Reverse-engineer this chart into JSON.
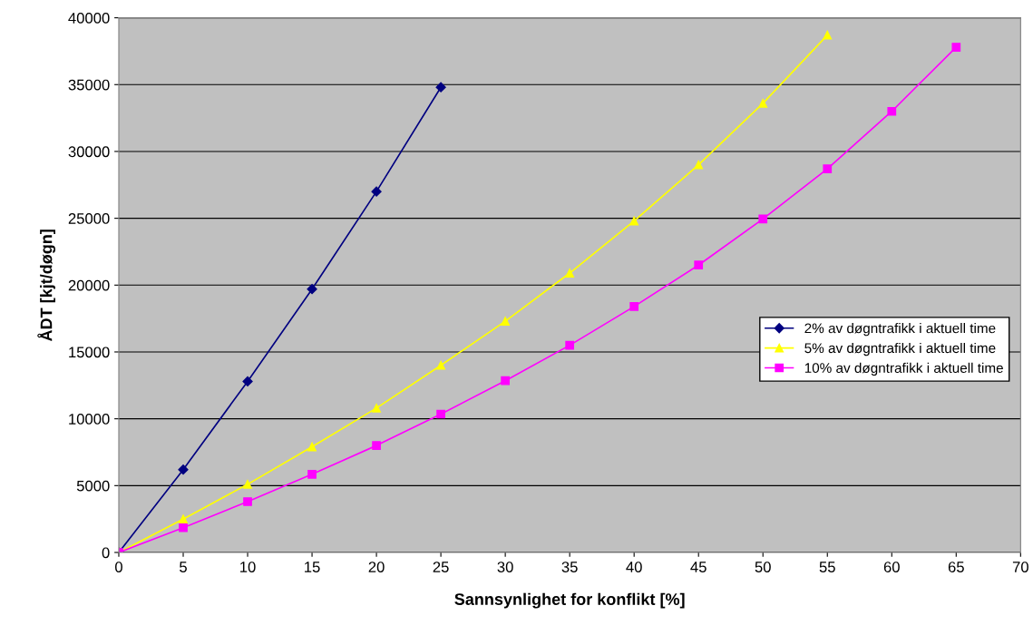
{
  "chart_data": {
    "type": "line",
    "xlabel": "Sannsynlighet for konflikt [%]",
    "ylabel": "ÅDT [kjt/døgn]",
    "xlim": [
      0,
      70
    ],
    "xticks": [
      0,
      5,
      10,
      15,
      20,
      25,
      30,
      35,
      40,
      45,
      50,
      55,
      60,
      65,
      70
    ],
    "ylim": [
      0,
      40000
    ],
    "yticks": [
      0,
      5000,
      10000,
      15000,
      20000,
      25000,
      30000,
      35000,
      40000
    ],
    "grid": "y",
    "legend": "right",
    "line_style": "solid",
    "series": [
      {
        "name": "2% av døgntrafikk i aktuell time",
        "color": "#000080",
        "marker": "diamond",
        "x": [
          0,
          5,
          10,
          15,
          20,
          25
        ],
        "values": [
          0,
          6200,
          12800,
          19700,
          27000,
          34800
        ]
      },
      {
        "name": "5% av døgntrafikk i aktuell time",
        "color": "#ffff00",
        "marker": "triangle",
        "x": [
          0,
          5,
          10,
          15,
          20,
          25,
          30,
          35,
          40,
          45,
          50,
          55
        ],
        "values": [
          0,
          2500,
          5100,
          7900,
          10800,
          14000,
          17300,
          20900,
          24800,
          29000,
          33600,
          38700
        ]
      },
      {
        "name": "10% av døgntrafikk i aktuell time",
        "color": "#ff00ff",
        "marker": "square",
        "x": [
          0,
          5,
          10,
          15,
          20,
          25,
          30,
          35,
          40,
          45,
          50,
          55,
          60,
          65
        ],
        "values": [
          0,
          1850,
          3800,
          5850,
          8000,
          10350,
          12850,
          15500,
          18400,
          21500,
          24950,
          28700,
          33000,
          37800
        ]
      }
    ]
  }
}
